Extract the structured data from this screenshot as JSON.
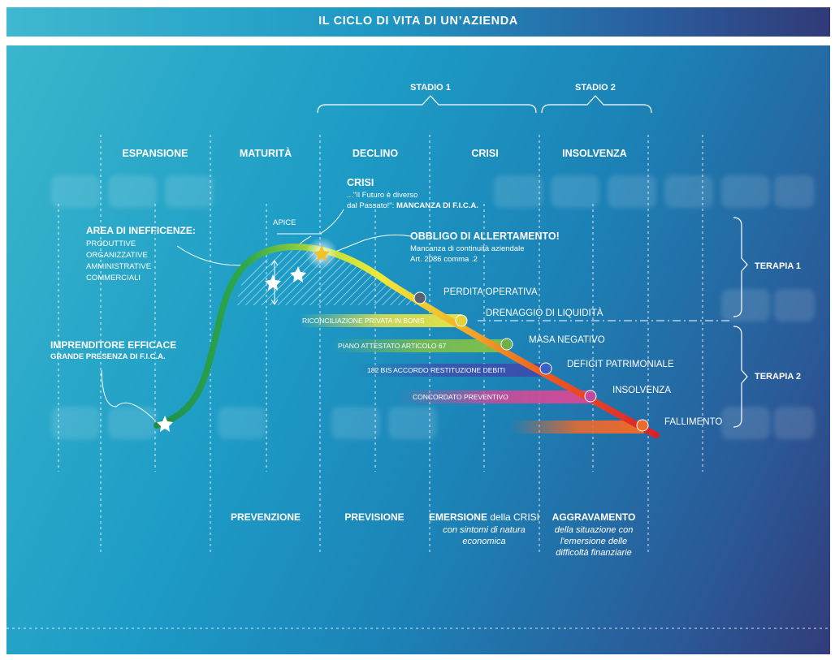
{
  "title": "IL CICLO DI VITA DI UN’AZIENDA",
  "stages": {
    "stadio1": "STADIO 1",
    "stadio2": "STADIO 2"
  },
  "phases": [
    "ESPANSIONE",
    "MATURITÀ",
    "DECLINO",
    "CRISI",
    "INSOLVENZA"
  ],
  "terapie": {
    "terapia1": "TERAPIA 1",
    "terapia2": "TERAPIA 2"
  },
  "curve": {
    "apice": "APICE",
    "inefficienze_title": "AREA DI INEFFICENZE:",
    "inefficienze_items": [
      "PRODUTTIVE",
      "ORGANIZZATIVE",
      "AMMINISTRATIVE",
      "COMMERCIALI"
    ],
    "imprenditore_title": "IMPRENDITORE EFFICACE",
    "imprenditore_sub": "GRANDE PRESENZA DI F.I.C.A.",
    "crisi_title": "CRISI",
    "crisi_line1": "...\"Il Futuro è diverso",
    "crisi_line2a": "dal Passato!\": ",
    "crisi_line2b": "MANCANZA DI F.I.C.A.",
    "obbligo_title": "OBBLIGO DI ALLERTAMENTO!",
    "obbligo_line1": "Mancanza di continuità aziendale",
    "obbligo_line2": "Art. 2086 comma .2"
  },
  "milestones": [
    "PERDITA OPERATIVA",
    "DRENAGGIO DI LIQUIDITÀ",
    "MASA NEGATIVO",
    "DEFICIT PATRIMONIALE",
    "INSOLVENZA",
    "FALLIMENTO"
  ],
  "bars": [
    {
      "label": "RICONCILIAZIONE PRIVATA IN BONIS",
      "color": "#e3e24a"
    },
    {
      "label": "PIANO ATTESTATO ARTICOLO 67",
      "color": "#7fc04a"
    },
    {
      "label": "182 BIS ACCORDO RESTITUZIONE DEBITI",
      "color": "#3a4fae"
    },
    {
      "label": "CONCORDATO PREVENTIVO",
      "color": "#d24a97"
    },
    {
      "label": "",
      "color": "#ee6a2a"
    }
  ],
  "footer": {
    "prevenzione": "PREVENZIONE",
    "previsione": "PREVISIONE",
    "emersione_bold": "EMERSIONE",
    "emersione_rest": " della CRISI",
    "emersione_sub": [
      "con sintomi di natura",
      "economica"
    ],
    "aggravamento": "AGGRAVAMENTO",
    "aggravamento_sub": [
      "della situazione con",
      "l'emersione delle",
      "difficoltà finanziarie"
    ]
  },
  "colors": {
    "curve_start": "#1e8f4a",
    "curve_peak": "#e6e63a",
    "curve_end": "#e0232a"
  }
}
